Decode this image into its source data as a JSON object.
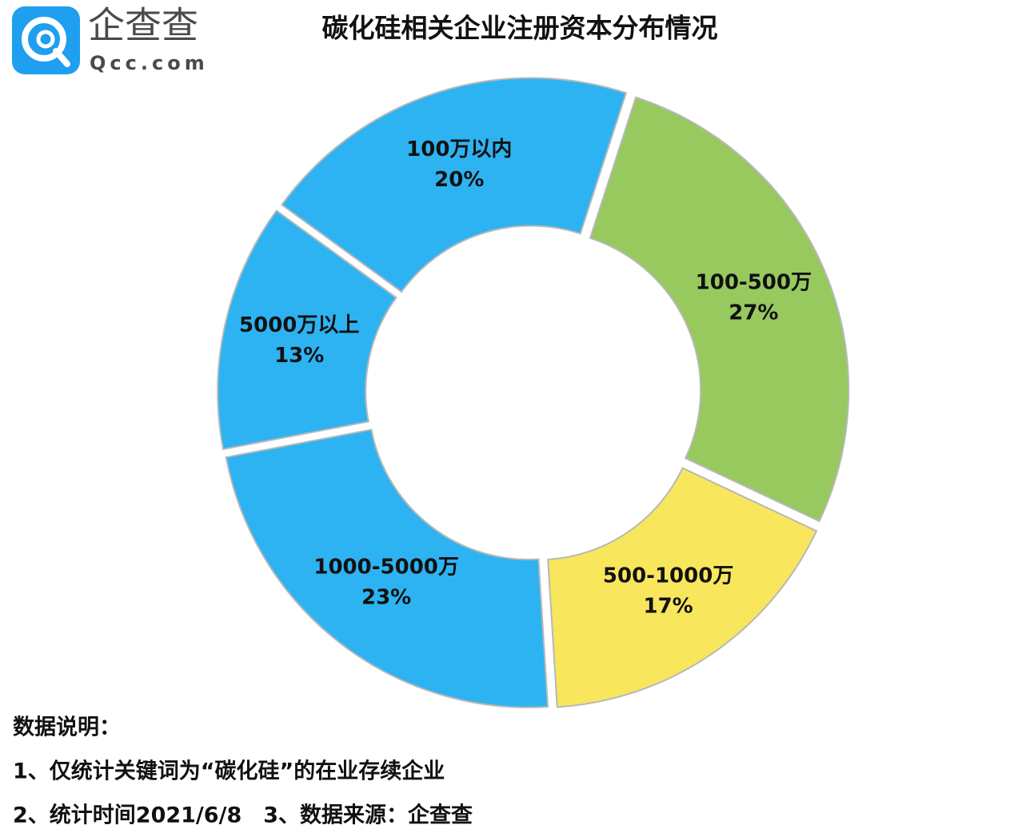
{
  "logo": {
    "name": "企查查",
    "domain": "Qcc.com"
  },
  "chart_data": {
    "type": "donut",
    "title": "碳化硅相关企业注册资本分布情况",
    "categories": [
      "100万以内",
      "100-500万",
      "500-1000万",
      "1000-5000万",
      "5000万以上"
    ],
    "values": [
      20,
      27,
      17,
      23,
      13
    ],
    "value_labels": [
      "20%",
      "27%",
      "17%",
      "23%",
      "13%"
    ],
    "colors": [
      "#2db3f1",
      "#97c95f",
      "#f8e65c",
      "#2db3f1",
      "#2db3f1"
    ]
  },
  "notes": [
    "数据说明：",
    "1、仅统计关键词为“碳化硅”的在业存续企业",
    "2、统计时间2021/6/8　3、数据来源：企查查"
  ]
}
